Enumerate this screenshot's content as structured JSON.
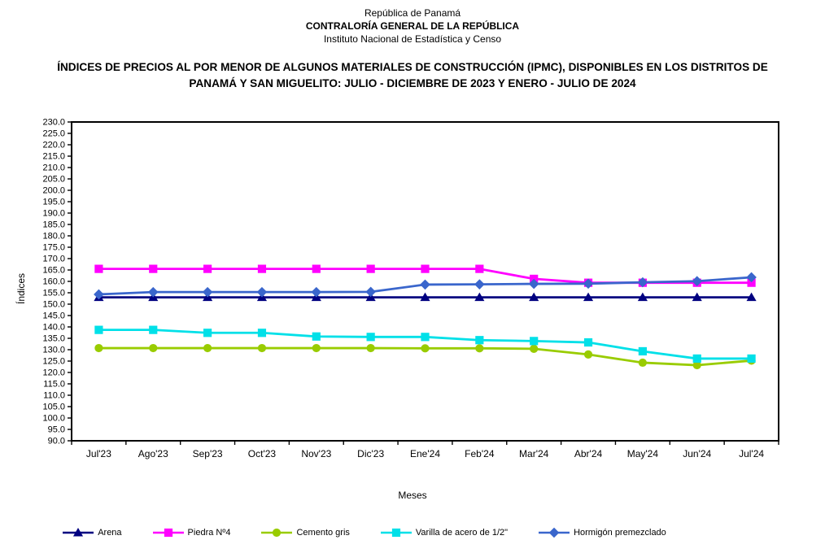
{
  "header": {
    "line1": "República de Panamá",
    "line2": "CONTRALORÍA GENERAL DE LA REPÚBLICA",
    "line3": "Instituto Nacional de Estadística y Censo"
  },
  "title": "ÍNDICES DE PRECIOS AL POR MENOR DE ALGUNOS MATERIALES DE CONSTRUCCIÓN  (IPMC), DISPONIBLES EN LOS DISTRITOS DE PANAMÁ Y SAN MIGUELITO: JULIO - DICIEMBRE DE 2023 Y ENERO - JULIO DE 2024",
  "chart_data": {
    "type": "line",
    "xlabel": "Meses",
    "ylabel": "Índices",
    "ylim": [
      90,
      230
    ],
    "ytick_step": 5,
    "ytick_format_decimals": 1,
    "grid": false,
    "legend_position": "bottom",
    "categories": [
      "Jul'23",
      "Ago'23",
      "Sep'23",
      "Oct'23",
      "Nov'23",
      "Dic'23",
      "Ene'24",
      "Feb'24",
      "Mar'24",
      "Abr'24",
      "May'24",
      "Jun'24",
      "Jul'24"
    ],
    "series": [
      {
        "name": "Arena",
        "color": "#000080",
        "marker": "triangle",
        "values": [
          153.0,
          153.0,
          153.0,
          153.0,
          153.0,
          153.0,
          153.0,
          153.0,
          153.0,
          153.0,
          153.0,
          153.0,
          153.0
        ]
      },
      {
        "name": "Piedra Nº4",
        "color": "#FF00FF",
        "marker": "square",
        "values": [
          165.5,
          165.5,
          165.5,
          165.5,
          165.5,
          165.5,
          165.5,
          165.5,
          161.1,
          159.4,
          159.4,
          159.4,
          159.4
        ]
      },
      {
        "name": "Cemento gris",
        "color": "#99CC00",
        "marker": "circle",
        "values": [
          130.7,
          130.7,
          130.7,
          130.7,
          130.7,
          130.7,
          130.6,
          130.6,
          130.4,
          127.9,
          124.3,
          123.2,
          125.2
        ]
      },
      {
        "name": "Varilla de acero de 1/2\"",
        "color": "#00E0E8",
        "marker": "square",
        "values": [
          138.7,
          138.7,
          137.4,
          137.4,
          135.8,
          135.6,
          135.6,
          134.2,
          133.8,
          133.2,
          129.3,
          126.1,
          126.1
        ]
      },
      {
        "name": "Hormigón premezclado",
        "color": "#3A66CC",
        "marker": "diamond",
        "values": [
          154.3,
          155.3,
          155.3,
          155.3,
          155.3,
          155.4,
          158.6,
          158.7,
          158.9,
          159.0,
          159.6,
          160.1,
          161.8
        ]
      }
    ]
  }
}
